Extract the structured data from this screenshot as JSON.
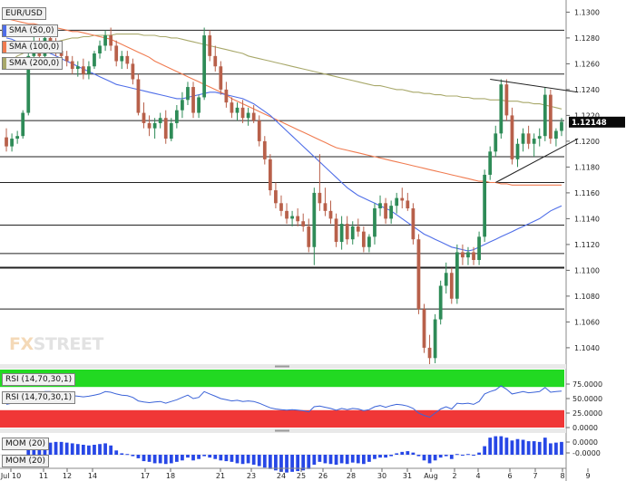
{
  "header": {
    "symbol": "EUR/USD"
  },
  "legend": {
    "sma50": {
      "label": "SMA (50,0)",
      "color": "#4f6ee8"
    },
    "sma100": {
      "label": "SMA (100,0)",
      "color": "#f07b50"
    },
    "sma200": {
      "label": "SMA (200,0)",
      "color": "#a8a86a"
    }
  },
  "watermark": {
    "part1": "FX",
    "part2": "STREET"
  },
  "rsi_panel": {
    "label_top": "RSI (14,70,30,1)",
    "label_line": "RSI (14,70,30,1)",
    "ticks": [
      "75.0000",
      "50.0000",
      "25.0000",
      "0.0000"
    ]
  },
  "mom_panel": {
    "label_top": "MOM (20)",
    "label_bottom": "MOM (20)",
    "ticks": [
      "0.0000",
      "-0.0000"
    ]
  },
  "price_badge": {
    "value": "1.12148"
  },
  "colors": {
    "up": "#2e8b57",
    "down": "#b8604a",
    "rsi_line": "#3b63d8",
    "mom_bar": "#2747e6",
    "overbought": "#22d922",
    "oversold": "#f03737"
  },
  "chart_data": {
    "type": "candlestick",
    "symbol": "EUR/USD",
    "x_tick_labels": [
      "Jul 10",
      "11",
      "12",
      "14",
      "17",
      "18",
      "21",
      "23",
      "24",
      "25",
      "26",
      "28",
      "30",
      "31",
      "Aug",
      "2",
      "4",
      "6",
      "7",
      "8",
      "9"
    ],
    "y_ticks": [
      1.104,
      1.106,
      1.108,
      1.11,
      1.112,
      1.114,
      1.116,
      1.118,
      1.12,
      1.122,
      1.124,
      1.126,
      1.128,
      1.13
    ],
    "ylim": [
      1.1028,
      1.1308
    ],
    "last_price": 1.12148,
    "horizontal_levels": [
      1.1286,
      1.1252,
      1.1216,
      1.1188,
      1.1168,
      1.1135,
      1.1113,
      1.1102,
      1.107
    ],
    "candles": [
      [
        1.1203,
        1.121,
        1.1192,
        1.1196
      ],
      [
        1.1196,
        1.1206,
        1.1192,
        1.1202
      ],
      [
        1.1202,
        1.1208,
        1.1198,
        1.1204
      ],
      [
        1.1204,
        1.1224,
        1.1202,
        1.1222
      ],
      [
        1.1222,
        1.1274,
        1.122,
        1.1266
      ],
      [
        1.1266,
        1.1282,
        1.126,
        1.1272
      ],
      [
        1.1272,
        1.128,
        1.1262,
        1.1266
      ],
      [
        1.1266,
        1.1286,
        1.126,
        1.128
      ],
      [
        1.128,
        1.1286,
        1.127,
        1.1276
      ],
      [
        1.1276,
        1.128,
        1.1266,
        1.127
      ],
      [
        1.127,
        1.1275,
        1.1262,
        1.1266
      ],
      [
        1.1266,
        1.127,
        1.1258,
        1.1262
      ],
      [
        1.1262,
        1.1266,
        1.1252,
        1.1256
      ],
      [
        1.1256,
        1.1262,
        1.125,
        1.1258
      ],
      [
        1.1258,
        1.1264,
        1.1248,
        1.1252
      ],
      [
        1.1252,
        1.1262,
        1.1248,
        1.1258
      ],
      [
        1.1258,
        1.127,
        1.1256,
        1.1268
      ],
      [
        1.1268,
        1.1278,
        1.1264,
        1.1274
      ],
      [
        1.1274,
        1.1286,
        1.127,
        1.1282
      ],
      [
        1.1282,
        1.1288,
        1.127,
        1.1274
      ],
      [
        1.1274,
        1.1278,
        1.1258,
        1.1262
      ],
      [
        1.1262,
        1.127,
        1.1256,
        1.1266
      ],
      [
        1.1266,
        1.127,
        1.1256,
        1.126
      ],
      [
        1.126,
        1.1264,
        1.1244,
        1.1248
      ],
      [
        1.1248,
        1.1252,
        1.122,
        1.1222
      ],
      [
        1.1222,
        1.123,
        1.121,
        1.1214
      ],
      [
        1.1214,
        1.122,
        1.1204,
        1.121
      ],
      [
        1.121,
        1.1218,
        1.1202,
        1.1214
      ],
      [
        1.1214,
        1.1222,
        1.121,
        1.1218
      ],
      [
        1.1218,
        1.1224,
        1.1198,
        1.1202
      ],
      [
        1.1202,
        1.1218,
        1.12,
        1.1214
      ],
      [
        1.1214,
        1.1228,
        1.121,
        1.1224
      ],
      [
        1.1224,
        1.1238,
        1.1218,
        1.1232
      ],
      [
        1.1232,
        1.1246,
        1.1228,
        1.1242
      ],
      [
        1.1242,
        1.1246,
        1.1218,
        1.1222
      ],
      [
        1.1222,
        1.1236,
        1.1218,
        1.1234
      ],
      [
        1.1234,
        1.1288,
        1.1232,
        1.1282
      ],
      [
        1.1282,
        1.1286,
        1.1262,
        1.1266
      ],
      [
        1.1266,
        1.1274,
        1.1254,
        1.1258
      ],
      [
        1.1258,
        1.1262,
        1.1236,
        1.124
      ],
      [
        1.124,
        1.1246,
        1.1226,
        1.123
      ],
      [
        1.123,
        1.1234,
        1.1218,
        1.1222
      ],
      [
        1.1222,
        1.123,
        1.1216,
        1.1226
      ],
      [
        1.1226,
        1.1232,
        1.1214,
        1.1218
      ],
      [
        1.1218,
        1.1226,
        1.1212,
        1.1222
      ],
      [
        1.1222,
        1.1228,
        1.1214,
        1.1216
      ],
      [
        1.1216,
        1.122,
        1.1196,
        1.12
      ],
      [
        1.12,
        1.1204,
        1.1182,
        1.1186
      ],
      [
        1.1186,
        1.119,
        1.1158,
        1.1162
      ],
      [
        1.1162,
        1.1168,
        1.1148,
        1.1152
      ],
      [
        1.1152,
        1.1158,
        1.1142,
        1.1146
      ],
      [
        1.1146,
        1.1152,
        1.1136,
        1.114
      ],
      [
        1.114,
        1.1146,
        1.1134,
        1.1142
      ],
      [
        1.1142,
        1.1148,
        1.1134,
        1.1138
      ],
      [
        1.1138,
        1.1144,
        1.113,
        1.1134
      ],
      [
        1.1134,
        1.114,
        1.1114,
        1.1118
      ],
      [
        1.1118,
        1.1164,
        1.1104,
        1.116
      ],
      [
        1.116,
        1.119,
        1.1146,
        1.1152
      ],
      [
        1.1152,
        1.1164,
        1.1142,
        1.1146
      ],
      [
        1.1146,
        1.1154,
        1.1136,
        1.114
      ],
      [
        1.114,
        1.1144,
        1.1118,
        1.1122
      ],
      [
        1.1122,
        1.1142,
        1.1116,
        1.1136
      ],
      [
        1.1136,
        1.1142,
        1.112,
        1.1124
      ],
      [
        1.1124,
        1.1138,
        1.112,
        1.1134
      ],
      [
        1.1134,
        1.114,
        1.1126,
        1.113
      ],
      [
        1.113,
        1.1134,
        1.1114,
        1.1118
      ],
      [
        1.1118,
        1.1128,
        1.1114,
        1.1126
      ],
      [
        1.1126,
        1.1152,
        1.112,
        1.1148
      ],
      [
        1.1148,
        1.1158,
        1.1142,
        1.1152
      ],
      [
        1.1152,
        1.1156,
        1.1136,
        1.114
      ],
      [
        1.114,
        1.1154,
        1.1136,
        1.115
      ],
      [
        1.115,
        1.116,
        1.1144,
        1.1156
      ],
      [
        1.1156,
        1.1164,
        1.1148,
        1.1154
      ],
      [
        1.1154,
        1.116,
        1.1146,
        1.1148
      ],
      [
        1.1148,
        1.1152,
        1.112,
        1.1124
      ],
      [
        1.1124,
        1.1128,
        1.1066,
        1.107
      ],
      [
        1.107,
        1.1074,
        1.1036,
        1.104
      ],
      [
        1.104,
        1.105,
        1.1026,
        1.1032
      ],
      [
        1.1032,
        1.1066,
        1.1028,
        1.1062
      ],
      [
        1.1062,
        1.1092,
        1.1058,
        1.1088
      ],
      [
        1.1088,
        1.1106,
        1.1082,
        1.1098
      ],
      [
        1.1098,
        1.1102,
        1.1074,
        1.1078
      ],
      [
        1.1078,
        1.112,
        1.1074,
        1.1114
      ],
      [
        1.1114,
        1.112,
        1.1104,
        1.111
      ],
      [
        1.111,
        1.1118,
        1.1104,
        1.1114
      ],
      [
        1.1114,
        1.1118,
        1.1104,
        1.1108
      ],
      [
        1.1108,
        1.113,
        1.1104,
        1.1126
      ],
      [
        1.1126,
        1.1178,
        1.1122,
        1.1174
      ],
      [
        1.1174,
        1.1196,
        1.117,
        1.1192
      ],
      [
        1.1192,
        1.1212,
        1.1188,
        1.1206
      ],
      [
        1.1206,
        1.1248,
        1.1202,
        1.1244
      ],
      [
        1.1244,
        1.1248,
        1.1216,
        1.122
      ],
      [
        1.122,
        1.1226,
        1.1182,
        1.1186
      ],
      [
        1.1186,
        1.1202,
        1.118,
        1.1198
      ],
      [
        1.1198,
        1.121,
        1.1192,
        1.1206
      ],
      [
        1.1206,
        1.1212,
        1.1194,
        1.1198
      ],
      [
        1.1198,
        1.1206,
        1.1188,
        1.1202
      ],
      [
        1.1202,
        1.121,
        1.1196,
        1.1204
      ],
      [
        1.1204,
        1.1242,
        1.12,
        1.1236
      ],
      [
        1.1236,
        1.124,
        1.1198,
        1.1202
      ],
      [
        1.1202,
        1.121,
        1.1196,
        1.1208
      ],
      [
        1.1208,
        1.1218,
        1.1204,
        1.1215
      ]
    ],
    "sma50": [
      1.128,
      1.1279,
      1.1277,
      1.1276,
      1.1275,
      1.1274,
      1.1272,
      1.127,
      1.1268,
      1.1266,
      1.1264,
      1.1262,
      1.126,
      1.1258,
      1.1256,
      1.1254,
      1.1252,
      1.125,
      1.1248,
      1.1246,
      1.1244,
      1.1243,
      1.1242,
      1.1241,
      1.124,
      1.1239,
      1.1238,
      1.1237,
      1.1236,
      1.1235,
      1.1234,
      1.1233,
      1.1233,
      1.1234,
      1.1235,
      1.1236,
      1.1237,
      1.1238,
      1.1238,
      1.1237,
      1.1236,
      1.1235,
      1.1234,
      1.1233,
      1.1231,
      1.1229,
      1.1226,
      1.1223,
      1.122,
      1.1216,
      1.1212,
      1.1208,
      1.1204,
      1.12,
      1.1196,
      1.1192,
      1.1188,
      1.1184,
      1.118,
      1.1176,
      1.1172,
      1.1168,
      1.1164,
      1.1161,
      1.1158,
      1.1156,
      1.1154,
      1.1152,
      1.115,
      1.1148,
      1.1146,
      1.1143,
      1.114,
      1.1137,
      1.1134,
      1.1131,
      1.1128,
      1.1126,
      1.1124,
      1.1122,
      1.112,
      1.1118,
      1.1117,
      1.1116,
      1.1115,
      1.1116,
      1.1118,
      1.112,
      1.1122,
      1.1124,
      1.1126,
      1.1128,
      1.113,
      1.1132,
      1.1134,
      1.1136,
      1.1138,
      1.114,
      1.1143,
      1.1146,
      1.1148,
      1.115
    ],
    "sma100": [
      1.1295,
      1.1294,
      1.1293,
      1.1292,
      1.1291,
      1.1291,
      1.129,
      1.1289,
      1.1288,
      1.1288,
      1.1287,
      1.1286,
      1.1285,
      1.1285,
      1.1284,
      1.1283,
      1.1282,
      1.1281,
      1.128,
      1.1279,
      1.1277,
      1.1275,
      1.1273,
      1.1271,
      1.1269,
      1.1267,
      1.1265,
      1.1262,
      1.126,
      1.1258,
      1.1256,
      1.1254,
      1.1252,
      1.125,
      1.1248,
      1.1246,
      1.1244,
      1.1242,
      1.124,
      1.1238,
      1.1236,
      1.1233,
      1.1231,
      1.1229,
      1.1227,
      1.1225,
      1.1223,
      1.1221,
      1.1219,
      1.1217,
      1.1215,
      1.1213,
      1.1211,
      1.1209,
      1.1207,
      1.1205,
      1.1203,
      1.1201,
      1.1199,
      1.1197,
      1.1195,
      1.1194,
      1.1193,
      1.1192,
      1.1191,
      1.119,
      1.1189,
      1.1188,
      1.1187,
      1.1186,
      1.1185,
      1.1184,
      1.1183,
      1.1182,
      1.1181,
      1.118,
      1.1179,
      1.1178,
      1.1177,
      1.1176,
      1.1175,
      1.1174,
      1.1173,
      1.1172,
      1.1171,
      1.117,
      1.1169,
      1.1169,
      1.1168,
      1.1168,
      1.1167,
      1.1167,
      1.1166,
      1.1166,
      1.1166,
      1.1166,
      1.1166,
      1.1166,
      1.1166,
      1.1166,
      1.1166,
      1.1166
    ],
    "sma200": [
      1.126,
      1.1263,
      1.1266,
      1.1268,
      1.127,
      1.1272,
      1.1274,
      1.1275,
      1.1276,
      1.1277,
      1.1278,
      1.1279,
      1.128,
      1.128,
      1.1281,
      1.1281,
      1.1282,
      1.1282,
      1.1282,
      1.1282,
      1.1283,
      1.1283,
      1.1283,
      1.1283,
      1.1283,
      1.1282,
      1.1282,
      1.1282,
      1.1281,
      1.1281,
      1.128,
      1.128,
      1.1279,
      1.1278,
      1.1277,
      1.1276,
      1.1275,
      1.1274,
      1.1273,
      1.1272,
      1.1271,
      1.127,
      1.1269,
      1.1268,
      1.1266,
      1.1265,
      1.1264,
      1.1263,
      1.1262,
      1.1261,
      1.126,
      1.1259,
      1.1258,
      1.1257,
      1.1256,
      1.1255,
      1.1254,
      1.1253,
      1.1252,
      1.1251,
      1.125,
      1.1249,
      1.1248,
      1.1247,
      1.1246,
      1.1245,
      1.1244,
      1.1243,
      1.1243,
      1.1242,
      1.1241,
      1.124,
      1.124,
      1.1239,
      1.1238,
      1.1238,
      1.1237,
      1.1237,
      1.1236,
      1.1236,
      1.1235,
      1.1235,
      1.1235,
      1.1234,
      1.1234,
      1.1233,
      1.1233,
      1.1233,
      1.1232,
      1.1232,
      1.1232,
      1.1231,
      1.1231,
      1.1231,
      1.123,
      1.123,
      1.1229,
      1.1229,
      1.1228,
      1.1227,
      1.1226,
      1.1225
    ],
    "trendlines": [
      {
        "from": [
          88,
          1.1248
        ],
        "to": [
          104,
          1.1238
        ]
      },
      {
        "from": [
          89,
          1.1168
        ],
        "to": [
          104,
          1.1202
        ]
      }
    ],
    "rsi": {
      "period": 14,
      "levels": [
        70,
        30
      ],
      "ylim": [
        0,
        100
      ],
      "values": [
        40,
        42,
        44,
        46,
        52,
        58,
        60,
        62,
        62,
        60,
        58,
        56,
        55,
        54,
        53,
        54,
        56,
        58,
        62,
        61,
        58,
        56,
        55,
        52,
        46,
        44,
        43,
        44,
        45,
        42,
        45,
        48,
        52,
        56,
        50,
        52,
        62,
        58,
        54,
        50,
        48,
        46,
        47,
        45,
        46,
        45,
        42,
        38,
        34,
        32,
        31,
        30,
        31,
        30,
        29,
        27,
        36,
        37,
        35,
        33,
        30,
        33,
        31,
        33,
        32,
        29,
        31,
        36,
        38,
        35,
        38,
        40,
        39,
        37,
        33,
        25,
        21,
        18,
        25,
        32,
        36,
        32,
        42,
        41,
        42,
        40,
        45,
        58,
        62,
        65,
        72,
        66,
        58,
        60,
        62,
        60,
        61,
        62,
        69,
        61,
        62,
        63
      ]
    },
    "mom": {
      "period": 20,
      "values": [
        -0.0004,
        -0.0004,
        -0.0002,
        -0.0001,
        0.0008,
        0.0012,
        0.0013,
        0.0016,
        0.0017,
        0.0018,
        0.0018,
        0.0017,
        0.0016,
        0.0015,
        0.0014,
        0.0013,
        0.0014,
        0.0015,
        0.0016,
        0.0013,
        0.0006,
        0.0002,
        0.0001,
        -0.0002,
        -0.0005,
        -0.0009,
        -0.001,
        -0.0012,
        -0.0012,
        -0.0013,
        -0.0012,
        -0.001,
        -0.0008,
        -0.0004,
        -0.0008,
        -0.0006,
        -0.0002,
        -0.0004,
        -0.0006,
        -0.0008,
        -0.0009,
        -0.001,
        -0.0012,
        -0.0013,
        -0.0012,
        -0.0014,
        -0.0016,
        -0.0018,
        -0.002,
        -0.0022,
        -0.0024,
        -0.0025,
        -0.0024,
        -0.0023,
        -0.0022,
        -0.002,
        -0.0014,
        -0.001,
        -0.0012,
        -0.0013,
        -0.0014,
        -0.0012,
        -0.0013,
        -0.0011,
        -0.0012,
        -0.0013,
        -0.001,
        -0.0006,
        -0.0004,
        -0.0004,
        -0.0002,
        0.0002,
        0.0004,
        0.0005,
        0.0003,
        -0.0002,
        -0.0008,
        -0.0012,
        -0.0008,
        -0.0004,
        -0.0002,
        -0.0006,
        0.0001,
        0.0,
        0.0001,
        -0.0001,
        0.0003,
        0.0012,
        0.0024,
        0.0026,
        0.0026,
        0.0024,
        0.002,
        0.0022,
        0.0021,
        0.0019,
        0.0019,
        0.0018,
        0.0024,
        0.0016,
        0.0017,
        0.0018
      ]
    }
  }
}
